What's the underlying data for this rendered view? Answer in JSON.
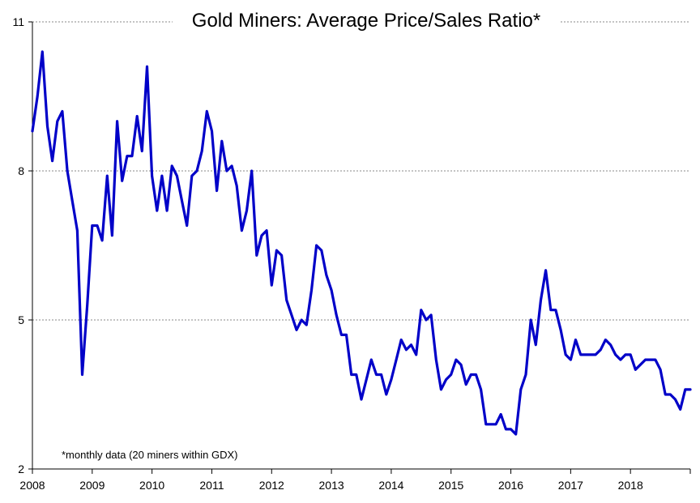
{
  "chart_data": {
    "type": "line",
    "title": "Gold Miners: Average Price/Sales Ratio*",
    "annotation": "*monthly data (20 miners within GDX)",
    "xlabel": "",
    "ylabel": "",
    "ylim": [
      2,
      11
    ],
    "xlim": [
      "2008-01",
      "2019-01"
    ],
    "yticks": [
      2,
      5,
      8,
      11
    ],
    "xticks": [
      "2008",
      "2009",
      "2010",
      "2011",
      "2012",
      "2013",
      "2014",
      "2015",
      "2016",
      "2017",
      "2018"
    ],
    "grid": "horizontal dotted",
    "line_color": "#0000c8",
    "series": [
      {
        "x": [
          "2008-01",
          "2008-02",
          "2008-03",
          "2008-04",
          "2008-05",
          "2008-06",
          "2008-07",
          "2008-08",
          "2008-09",
          "2008-10",
          "2008-11",
          "2008-12",
          "2009-01",
          "2009-02",
          "2009-03",
          "2009-04",
          "2009-05",
          "2009-06",
          "2009-07",
          "2009-08",
          "2009-09",
          "2009-10",
          "2009-11",
          "2009-12",
          "2010-01",
          "2010-02",
          "2010-03",
          "2010-04",
          "2010-05",
          "2010-06",
          "2010-07",
          "2010-08",
          "2010-09",
          "2010-10",
          "2010-11",
          "2010-12",
          "2011-01",
          "2011-02",
          "2011-03",
          "2011-04",
          "2011-05",
          "2011-06",
          "2011-07",
          "2011-08",
          "2011-09",
          "2011-10",
          "2011-11",
          "2011-12",
          "2012-01",
          "2012-02",
          "2012-03",
          "2012-04",
          "2012-05",
          "2012-06",
          "2012-07",
          "2012-08",
          "2012-09",
          "2012-10",
          "2012-11",
          "2012-12",
          "2013-01",
          "2013-02",
          "2013-03",
          "2013-04",
          "2013-05",
          "2013-06",
          "2013-07",
          "2013-08",
          "2013-09",
          "2013-10",
          "2013-11",
          "2013-12",
          "2014-01",
          "2014-02",
          "2014-03",
          "2014-04",
          "2014-05",
          "2014-06",
          "2014-07",
          "2014-08",
          "2014-09",
          "2014-10",
          "2014-11",
          "2014-12",
          "2015-01",
          "2015-02",
          "2015-03",
          "2015-04",
          "2015-05",
          "2015-06",
          "2015-07",
          "2015-08",
          "2015-09",
          "2015-10",
          "2015-11",
          "2015-12",
          "2016-01",
          "2016-02",
          "2016-03",
          "2016-04",
          "2016-05",
          "2016-06",
          "2016-07",
          "2016-08",
          "2016-09",
          "2016-10",
          "2016-11",
          "2016-12",
          "2017-01",
          "2017-02",
          "2017-03",
          "2017-04",
          "2017-05",
          "2017-06",
          "2017-07",
          "2017-08",
          "2017-09",
          "2017-10",
          "2017-11",
          "2017-12",
          "2018-01",
          "2018-02",
          "2018-03",
          "2018-04",
          "2018-05",
          "2018-06",
          "2018-07",
          "2018-08",
          "2018-09",
          "2018-10",
          "2018-11",
          "2018-12",
          "2019-01"
        ],
        "y": [
          8.8,
          9.5,
          10.4,
          8.9,
          8.2,
          9.0,
          9.2,
          8.0,
          7.4,
          6.8,
          3.9,
          5.3,
          6.9,
          6.9,
          6.6,
          7.9,
          6.7,
          9.0,
          7.8,
          8.3,
          8.3,
          9.1,
          8.4,
          10.1,
          7.9,
          7.2,
          7.9,
          7.2,
          8.1,
          7.9,
          7.4,
          6.9,
          7.9,
          8.0,
          8.4,
          9.2,
          8.8,
          7.6,
          8.6,
          8.0,
          8.1,
          7.7,
          6.8,
          7.2,
          8.0,
          6.3,
          6.7,
          6.8,
          5.7,
          6.4,
          6.3,
          5.4,
          5.1,
          4.8,
          5.0,
          4.9,
          5.6,
          6.5,
          6.4,
          5.9,
          5.6,
          5.1,
          4.7,
          4.7,
          3.9,
          3.9,
          3.4,
          3.8,
          4.2,
          3.9,
          3.9,
          3.5,
          3.8,
          4.2,
          4.6,
          4.4,
          4.5,
          4.3,
          5.2,
          5.0,
          5.1,
          4.2,
          3.6,
          3.8,
          3.9,
          4.2,
          4.1,
          3.7,
          3.9,
          3.9,
          3.6,
          2.9,
          2.9,
          2.9,
          3.1,
          2.8,
          2.8,
          2.7,
          3.6,
          3.9,
          5.0,
          4.5,
          5.4,
          6.0,
          5.2,
          5.2,
          4.8,
          4.3,
          4.2,
          4.6,
          4.3,
          4.3,
          4.3,
          4.3,
          4.4,
          4.6,
          4.5,
          4.3,
          4.2,
          4.3,
          4.3,
          4.0,
          4.1,
          4.2,
          4.2,
          4.2,
          4.0,
          3.5,
          3.5,
          3.4,
          3.2,
          3.6,
          3.6
        ]
      }
    ]
  }
}
